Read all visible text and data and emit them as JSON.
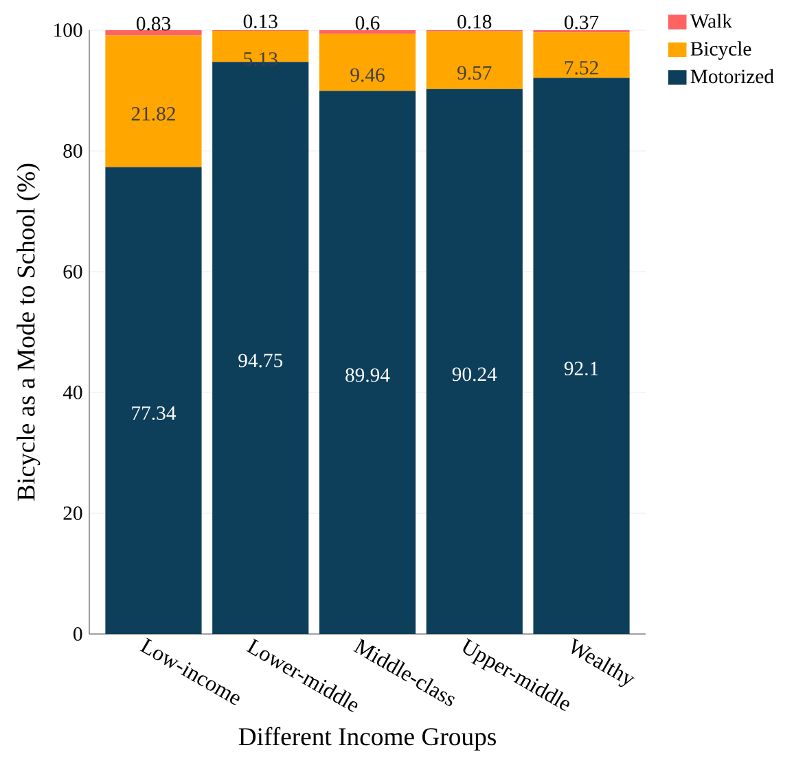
{
  "chart_data": {
    "type": "bar",
    "stacked": true,
    "xlabel": "Different Income Groups",
    "ylabel": "Bicycle as a Mode to School (%)",
    "categories": [
      "Low-income",
      "Lower-middle",
      "Middle-class",
      "Upper-middle",
      "Wealthy"
    ],
    "series": [
      {
        "name": "Motorized",
        "color": "#0d3f5a",
        "values": [
          77.34,
          94.75,
          89.94,
          90.24,
          92.1
        ]
      },
      {
        "name": "Bicycle",
        "color": "#ffa600",
        "values": [
          21.82,
          5.13,
          9.46,
          9.57,
          7.52
        ]
      },
      {
        "name": "Walk",
        "color": "#ff6361",
        "values": [
          0.83,
          0.13,
          0.6,
          0.18,
          0.37
        ]
      }
    ],
    "ylim": [
      0,
      100
    ],
    "yticks": [
      0,
      20,
      40,
      60,
      80,
      100
    ],
    "grid": "y",
    "legend": "right",
    "data_labels": true
  }
}
